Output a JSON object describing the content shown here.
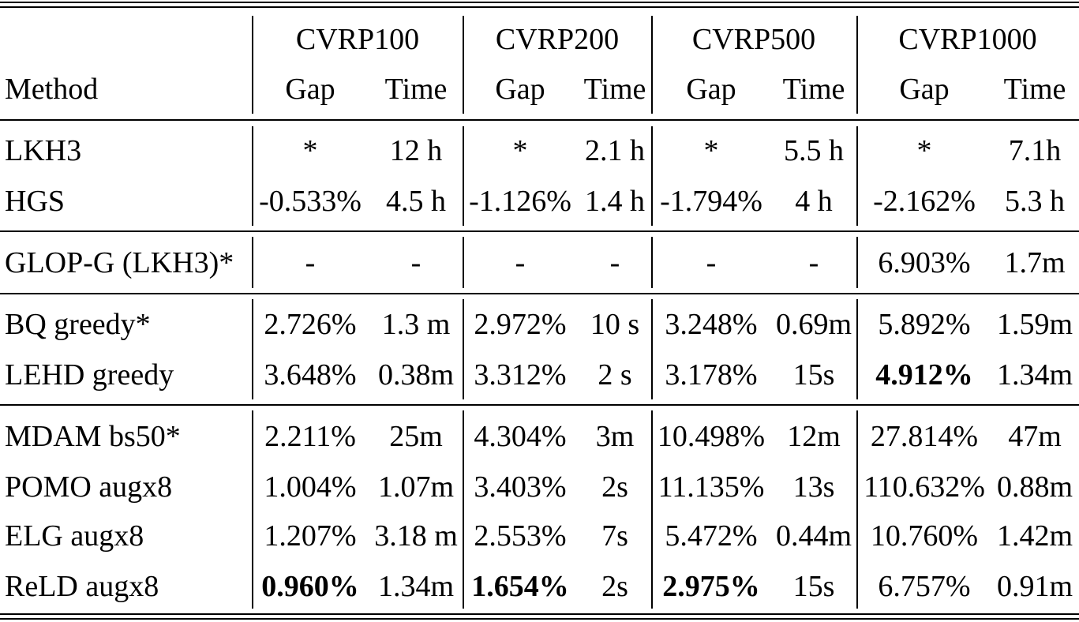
{
  "table": {
    "groups": [
      "CVRP100",
      "CVRP200",
      "CVRP500",
      "CVRP1000"
    ],
    "method_header": "Method",
    "sub_headers": [
      "Gap",
      "Time",
      "Gap",
      "Time",
      "Gap",
      "Time",
      "Gap",
      "Time"
    ],
    "sections": [
      [
        {
          "method": "LKH3",
          "values": [
            "*",
            "12 h",
            "*",
            "2.1 h",
            "*",
            "5.5 h",
            "*",
            "7.1h"
          ],
          "bold": []
        },
        {
          "method": "HGS",
          "values": [
            "-0.533%",
            "4.5 h",
            "-1.126%",
            "1.4 h",
            "-1.794%",
            "4 h",
            "-2.162%",
            "5.3 h"
          ],
          "bold": []
        }
      ],
      [
        {
          "method": "GLOP-G (LKH3)*",
          "values": [
            "-",
            "-",
            "-",
            "-",
            "-",
            "-",
            "6.903%",
            "1.7m"
          ],
          "bold": []
        }
      ],
      [
        {
          "method": "BQ greedy*",
          "values": [
            "2.726%",
            "1.3 m",
            "2.972%",
            "10 s",
            "3.248%",
            "0.69m",
            "5.892%",
            "1.59m"
          ],
          "bold": []
        },
        {
          "method": "LEHD greedy",
          "values": [
            "3.648%",
            "0.38m",
            "3.312%",
            "2 s",
            "3.178%",
            "15s",
            "4.912%",
            "1.34m"
          ],
          "bold": [
            6
          ]
        }
      ],
      [
        {
          "method": "MDAM bs50*",
          "values": [
            "2.211%",
            "25m",
            "4.304%",
            "3m",
            "10.498%",
            "12m",
            "27.814%",
            "47m"
          ],
          "bold": []
        },
        {
          "method": "POMO augx8",
          "values": [
            "1.004%",
            "1.07m",
            "3.403%",
            "2s",
            "11.135%",
            "13s",
            "110.632%",
            "0.88m"
          ],
          "bold": []
        },
        {
          "method": "ELG augx8",
          "values": [
            "1.207%",
            "3.18 m",
            "2.553%",
            "7s",
            "5.472%",
            "0.44m",
            "10.760%",
            "1.42m"
          ],
          "bold": []
        },
        {
          "method": "ReLD augx8",
          "values": [
            "0.960%",
            "1.34m",
            "1.654%",
            "2s",
            "2.975%",
            "15s",
            "6.757%",
            "0.91m"
          ],
          "bold": [
            0,
            2,
            4
          ]
        }
      ]
    ]
  }
}
